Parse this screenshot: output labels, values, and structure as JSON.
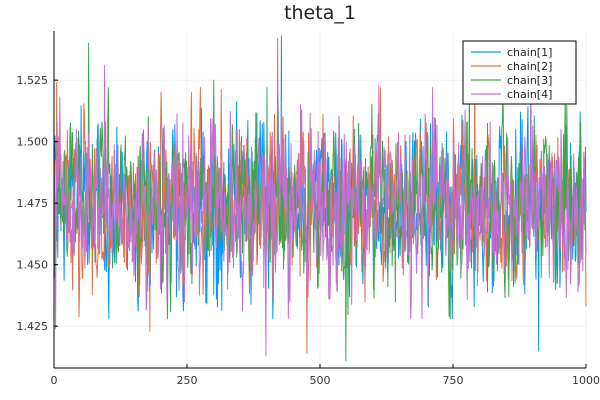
{
  "chart_data": {
    "type": "line",
    "title": "theta_1",
    "xlabel": "",
    "ylabel": "",
    "xlim": [
      0,
      1000
    ],
    "ylim": [
      1.408,
      1.545
    ],
    "x_ticks": [
      0,
      250,
      500,
      750,
      1000
    ],
    "x_tick_labels": [
      "0",
      "250",
      "500",
      "750",
      "1000"
    ],
    "y_ticks": [
      1.425,
      1.45,
      1.475,
      1.5,
      1.525
    ],
    "y_tick_labels": [
      "1.425",
      "1.450",
      "1.475",
      "1.500",
      "1.525"
    ],
    "grid": true,
    "legend_position": "top-right",
    "n_points": 1000,
    "series": [
      {
        "name": "chain[1]",
        "color": "#009AFA",
        "mean": 1.474,
        "sd": 0.0155,
        "points": [
          [
            0,
            1.44
          ],
          [
            230,
            1.437
          ],
          [
            300,
            1.438
          ],
          [
            420,
            1.52
          ],
          [
            427,
            1.543
          ],
          [
            600,
            1.44
          ],
          [
            910,
            1.415
          ]
        ]
      },
      {
        "name": "chain[2]",
        "color": "#E36F47",
        "mean": 1.474,
        "sd": 0.0155,
        "points": [
          [
            5,
            1.524
          ],
          [
            180,
            1.423
          ],
          [
            420,
            1.542
          ],
          [
            475,
            1.414
          ],
          [
            600,
            1.447
          ],
          [
            790,
            1.533
          ],
          [
            1000,
            1.433
          ]
        ]
      },
      {
        "name": "chain[3]",
        "color": "#3EA44E",
        "mean": 1.474,
        "sd": 0.0155,
        "points": [
          [
            65,
            1.54
          ],
          [
            160,
            1.437
          ],
          [
            300,
            1.525
          ],
          [
            400,
            1.522
          ],
          [
            548,
            1.411
          ],
          [
            720,
            1.445
          ],
          [
            960,
            1.522
          ]
        ]
      },
      {
        "name": "chain[4]",
        "color": "#C271D2",
        "mean": 1.474,
        "sd": 0.0155,
        "points": [
          [
            3,
            1.424
          ],
          [
            95,
            1.531
          ],
          [
            200,
            1.44
          ],
          [
            398,
            1.413
          ],
          [
            610,
            1.523
          ],
          [
            765,
            1.448
          ],
          [
            965,
            1.448
          ]
        ]
      }
    ]
  }
}
